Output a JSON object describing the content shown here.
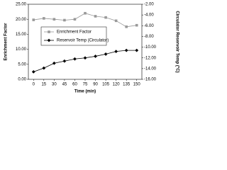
{
  "chart_data": {
    "type": "line",
    "x_label": "Time (min)",
    "y_label": "Enrichment Factor",
    "y2_label": "Circulator Reservoir Temp (°C)",
    "x": [
      0,
      15,
      30,
      45,
      60,
      75,
      90,
      105,
      120,
      135,
      150
    ],
    "xlim": [
      -7.5,
      157.5
    ],
    "xticks": [
      0,
      15,
      30,
      45,
      60,
      75,
      90,
      105,
      120,
      135,
      150
    ],
    "ylim": [
      0,
      25
    ],
    "yticks": [
      {
        "value": 0,
        "label": "0.00"
      },
      {
        "value": 5,
        "label": "5.00"
      },
      {
        "value": 10,
        "label": "10.00"
      },
      {
        "value": 15,
        "label": "15.00"
      },
      {
        "value": 20,
        "label": "20.00"
      },
      {
        "value": 25,
        "label": "25.00"
      }
    ],
    "y2lim": [
      -16,
      -2
    ],
    "y2ticks": [
      {
        "value": -16,
        "label": "-16.00"
      },
      {
        "value": -14,
        "label": "-14.00"
      },
      {
        "value": -12,
        "label": "-12.00"
      },
      {
        "value": -10,
        "label": "-10.00"
      },
      {
        "value": -8,
        "label": "-8.00"
      },
      {
        "value": -6,
        "label": "-6.00"
      },
      {
        "value": -4,
        "label": "-4.00"
      },
      {
        "value": -2,
        "label": "-2.00"
      }
    ],
    "series": [
      {
        "name": "Enrichment Factor",
        "color": "#999999",
        "marker": "square",
        "values": [
          19.8,
          20.3,
          20.0,
          19.7,
          20.0,
          22.0,
          21.0,
          20.6,
          19.5,
          17.5,
          18.0
        ]
      },
      {
        "name": "Reservoir Temp (Circulator)",
        "color": "#000000",
        "marker": "diamond",
        "axis": "y2",
        "values": [
          -14.6,
          -13.9,
          -13.0,
          -12.6,
          -12.2,
          -12.0,
          -11.7,
          -11.3,
          -10.8,
          -10.6,
          -10.6
        ]
      }
    ]
  }
}
